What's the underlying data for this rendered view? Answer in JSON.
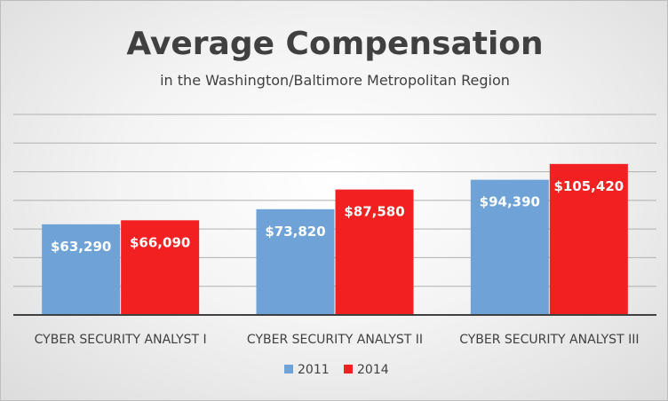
{
  "chart_data": {
    "type": "bar",
    "title": "Average Compensation",
    "subtitle": "in the Washington/Baltimore Metropolitan Region",
    "categories": [
      "CYBER SECURITY ANALYST I",
      "CYBER SECURITY ANALYST II",
      "CYBER SECURITY ANALYST III"
    ],
    "series": [
      {
        "name": "2011",
        "values": [
          63290,
          73820,
          94390
        ],
        "labels": [
          "$63,290",
          "$73,820",
          "$94,390"
        ],
        "color": "#6fa3d8"
      },
      {
        "name": "2014",
        "values": [
          66090,
          87580,
          105420
        ],
        "labels": [
          "$66,090",
          "$87,580",
          "$105,420"
        ],
        "color": "#f22020"
      }
    ],
    "ylim": [
      0,
      140000
    ],
    "grid": true,
    "legend": "bottom",
    "colors": {
      "gridline": "#b0b0b0",
      "axis": "#404040",
      "text": "#404040"
    }
  }
}
